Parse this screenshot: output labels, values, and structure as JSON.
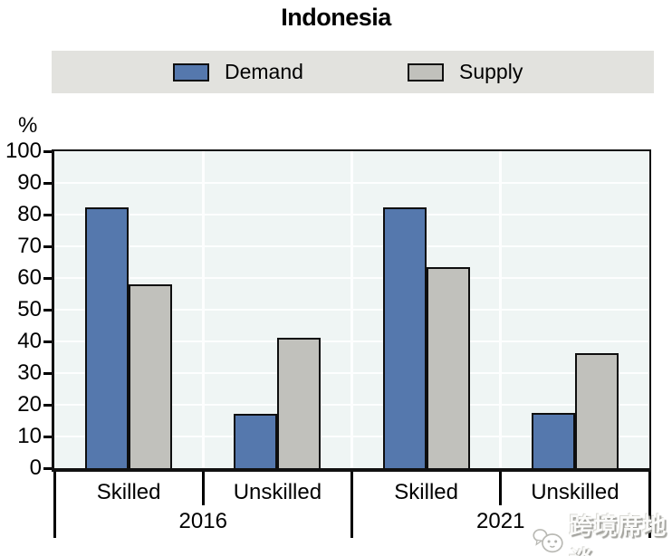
{
  "title": "Indonesia",
  "y_axis": {
    "unit_label": "%",
    "min": 0,
    "max": 100,
    "tick_step": 10,
    "tick_labels": [
      "0",
      "10",
      "20",
      "30",
      "40",
      "50",
      "60",
      "70",
      "80",
      "90",
      "100"
    ]
  },
  "x_axis": {
    "groups": [
      {
        "label": "2016",
        "categories": [
          "Skilled",
          "Unskilled"
        ]
      },
      {
        "label": "2021",
        "categories": [
          "Skilled",
          "Unskilled"
        ]
      }
    ]
  },
  "chart_data": {
    "type": "bar",
    "title": "Indonesia",
    "ylabel": "%",
    "ylim": [
      0,
      100
    ],
    "grid": "horizontal white gridlines every 10, vertical white gridlines at category boundaries",
    "legend_position": "top band",
    "group_labels": [
      "2016",
      "2021"
    ],
    "categories": [
      "2016 Skilled",
      "2016 Unskilled",
      "2021 Skilled",
      "2021 Unskilled"
    ],
    "series": [
      {
        "name": "Demand",
        "color": "#5578ad",
        "border": "#0e0e0e",
        "values": [
          82.4,
          17.2,
          82.2,
          17.3
        ]
      },
      {
        "name": "Supply",
        "color": "#c1c1bc",
        "border": "#0e0e0e",
        "values": [
          58.1,
          41.2,
          63.3,
          36.3
        ]
      }
    ]
  },
  "watermark": {
    "text": "跨境席地谈",
    "icon": "chat-bubbles-icon"
  },
  "palette": {
    "page_bg": "#ffffff",
    "plot_bg": "#eff5f4",
    "grid_color": "#fdfefe",
    "frame_color": "#111111",
    "legend_band_bg": "#e2e2de",
    "text_color": "#000000"
  }
}
